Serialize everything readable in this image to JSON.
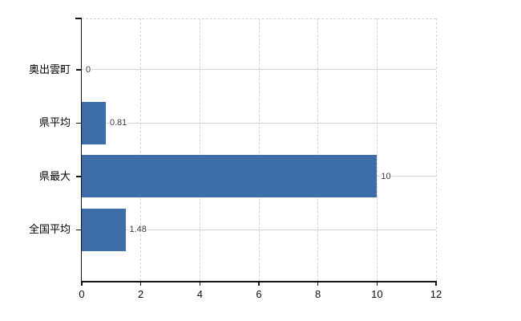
{
  "chart_data": {
    "type": "bar",
    "orientation": "horizontal",
    "title": "",
    "xlabel": "",
    "ylabel": "",
    "categories": [
      "奥出雲町",
      "県平均",
      "県最大",
      "全国平均"
    ],
    "values": [
      0,
      0.81,
      10,
      1.48
    ],
    "data_labels": [
      "0",
      "0.81",
      "10",
      "1.48"
    ],
    "xlim": [
      0,
      12
    ],
    "x_ticks": [
      0,
      2,
      4,
      6,
      8,
      10,
      12
    ],
    "x_tick_labels": [
      "0",
      "2",
      "4",
      "6",
      "8",
      "10",
      "12"
    ],
    "grid": {
      "horizontal": "solid",
      "vertical": "dashed"
    },
    "legend_position": "none",
    "colors": {
      "bar": "#3d6ea8",
      "axis": "#141414",
      "grid_horizontal": "#ccd9cc",
      "grid_vertical": "#d6d0da",
      "value_label": "#3a3a3a",
      "tick_label": "#111111",
      "category_label": "#000000",
      "background": "#ffffff"
    }
  }
}
